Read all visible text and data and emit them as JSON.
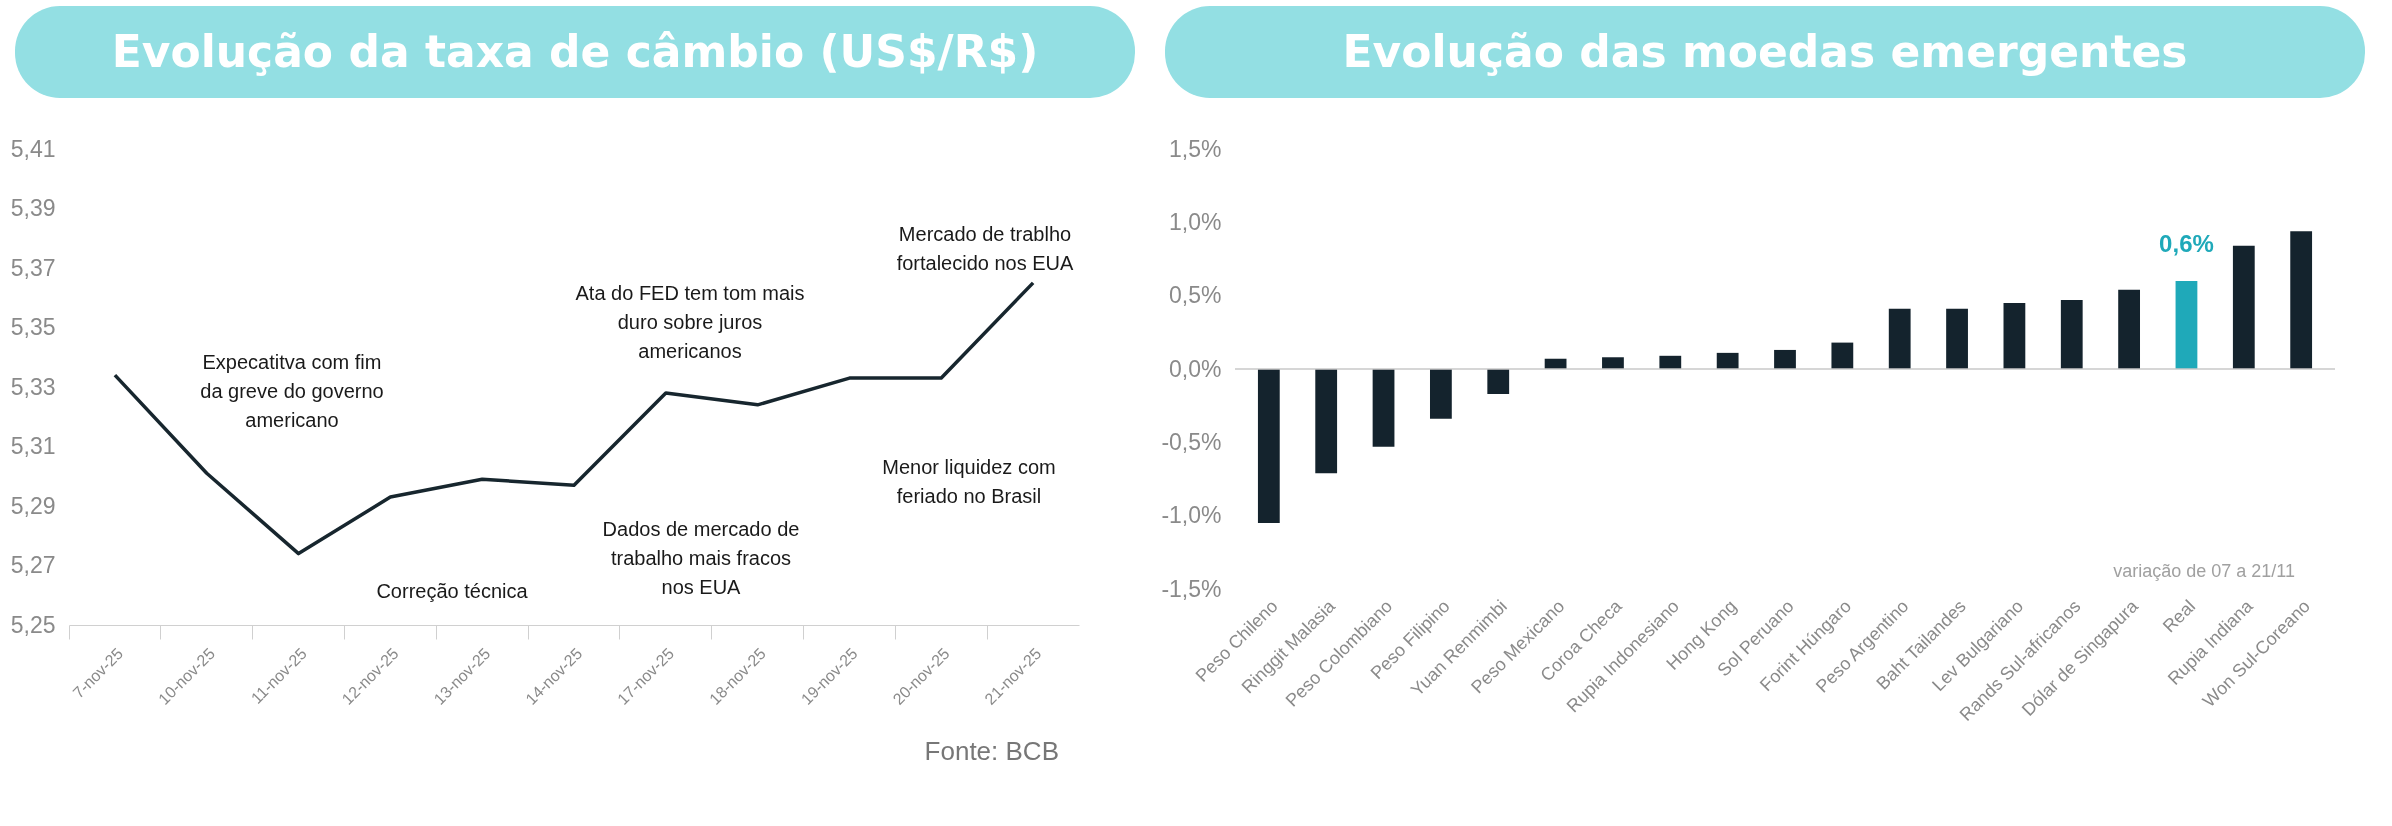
{
  "chart_data": [
    {
      "type": "line",
      "title": "Evolução da taxa de câmbio (US$/R$)",
      "categories": [
        "7-nov-25",
        "10-nov-25",
        "11-nov-25",
        "12-nov-25",
        "13-nov-25",
        "14-nov-25",
        "17-nov-25",
        "18-nov-25",
        "19-nov-25",
        "20-nov-25",
        "21-nov-25"
      ],
      "values": [
        5.334,
        5.301,
        5.274,
        5.293,
        5.299,
        5.297,
        5.328,
        5.324,
        5.333,
        5.333,
        5.365
      ],
      "color": "#17262e",
      "ylim": [
        5.25,
        5.41
      ],
      "yticks": [
        {
          "value": 5.25,
          "label": "5,25"
        },
        {
          "value": 5.27,
          "label": "5,27"
        },
        {
          "value": 5.29,
          "label": "5,29"
        },
        {
          "value": 5.31,
          "label": "5,31"
        },
        {
          "value": 5.33,
          "label": "5,33"
        },
        {
          "value": 5.35,
          "label": "5,35"
        },
        {
          "value": 5.37,
          "label": "5,37"
        },
        {
          "value": 5.39,
          "label": "5,39"
        },
        {
          "value": 5.41,
          "label": "5,41"
        }
      ],
      "grid": false,
      "annotations": [
        "Expecatitva com fim\nda greve do governo\namericano",
        "Correção técnica",
        "Ata do FED tem tom mais\nduro sobre juros\namericanos",
        "Dados de mercado de\ntrabalho mais fracos\nnos EUA",
        "Mercado de trablho\nfortalecido nos EUA",
        "Menor liquidez com\nferiado no Brasil",
        "Fonte: BCB"
      ]
    },
    {
      "type": "bar",
      "title": "Evolução das moedas emergentes",
      "categories": [
        "Peso Chileno",
        "Ringgit Malasia",
        "Peso Colombiano",
        "Peso Filipino",
        "Yuan Renmimbi",
        "Peso Mexicano",
        "Coroa Checa",
        "Rupia Indonesiano",
        "Hong Kong",
        "Sol Peruano",
        "Forint Húngaro",
        "Peso Argentino",
        "Baht Tailandes",
        "Lev Bulgariano",
        "Rands Sul-africanos",
        "Dólar de Singapura",
        "Real",
        "Rupia Indiana",
        "Won Sul-Coreano"
      ],
      "values": [
        -1.05,
        -0.71,
        -0.53,
        -0.34,
        -0.17,
        0.07,
        0.08,
        0.09,
        0.11,
        0.13,
        0.18,
        0.41,
        0.41,
        0.45,
        0.47,
        0.54,
        0.6,
        0.84,
        0.94
      ],
      "colors": [
        "#14232d",
        "#14232d",
        "#14232d",
        "#14232d",
        "#14232d",
        "#14232d",
        "#14232d",
        "#14232d",
        "#14232d",
        "#14232d",
        "#14232d",
        "#14232d",
        "#14232d",
        "#14232d",
        "#14232d",
        "#14232d",
        "#1fa9b9",
        "#14232d",
        "#14232d"
      ],
      "value_labels": [
        null,
        null,
        null,
        null,
        null,
        null,
        null,
        null,
        null,
        null,
        null,
        null,
        null,
        null,
        null,
        null,
        "0,6%",
        null,
        null
      ],
      "ylim": [
        -1.5,
        1.5
      ],
      "yticks": [
        {
          "value": -1.5,
          "label": "-1,5%"
        },
        {
          "value": -1.0,
          "label": "-1,0%"
        },
        {
          "value": -0.5,
          "label": "-0,5%"
        },
        {
          "value": 0,
          "label": "0,0%"
        },
        {
          "value": 0.5,
          "label": "0,5%"
        },
        {
          "value": 1.0,
          "label": "1,0%"
        },
        {
          "value": 1.5,
          "label": "1,5%"
        }
      ],
      "grid": false,
      "ref_lines": [
        {
          "axis": "y",
          "value": 0,
          "color": "#c8c8c8"
        }
      ],
      "annotations": [
        "variação de 07 a 21/11"
      ]
    }
  ]
}
